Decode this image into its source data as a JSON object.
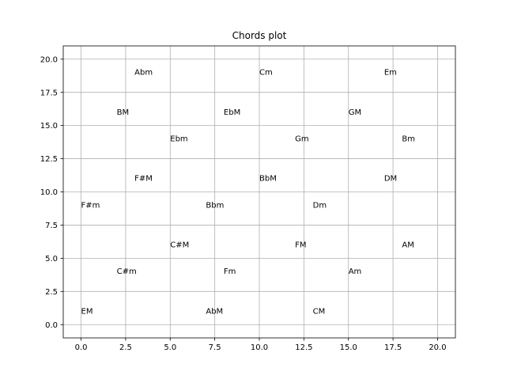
{
  "chart_data": {
    "type": "scatter",
    "title": "Chords plot",
    "xlabel": "",
    "ylabel": "",
    "xlim": [
      -1,
      21
    ],
    "ylim": [
      -1,
      21
    ],
    "grid": true,
    "x_ticks": [
      0.0,
      2.5,
      5.0,
      7.5,
      10.0,
      12.5,
      15.0,
      17.5,
      20.0
    ],
    "y_ticks": [
      0.0,
      2.5,
      5.0,
      7.5,
      10.0,
      12.5,
      15.0,
      17.5,
      20.0
    ],
    "x_tick_labels": [
      "0.0",
      "2.5",
      "5.0",
      "7.5",
      "10.0",
      "12.5",
      "15.0",
      "17.5",
      "20.0"
    ],
    "y_tick_labels": [
      "0.0",
      "2.5",
      "5.0",
      "7.5",
      "10.0",
      "12.5",
      "15.0",
      "17.5",
      "20.0"
    ],
    "points": [
      {
        "label": "Abm",
        "x": 3,
        "y": 19
      },
      {
        "label": "Cm",
        "x": 10,
        "y": 19
      },
      {
        "label": "Em",
        "x": 17,
        "y": 19
      },
      {
        "label": "BM",
        "x": 2,
        "y": 16
      },
      {
        "label": "EbM",
        "x": 8,
        "y": 16
      },
      {
        "label": "GM",
        "x": 15,
        "y": 16
      },
      {
        "label": "Ebm",
        "x": 5,
        "y": 14
      },
      {
        "label": "Gm",
        "x": 12,
        "y": 14
      },
      {
        "label": "Bm",
        "x": 18,
        "y": 14
      },
      {
        "label": "F#M",
        "x": 3,
        "y": 11
      },
      {
        "label": "BbM",
        "x": 10,
        "y": 11
      },
      {
        "label": "DM",
        "x": 17,
        "y": 11
      },
      {
        "label": "F#m",
        "x": 0,
        "y": 9
      },
      {
        "label": "Bbm",
        "x": 7,
        "y": 9
      },
      {
        "label": "Dm",
        "x": 13,
        "y": 9
      },
      {
        "label": "C#M",
        "x": 5,
        "y": 6
      },
      {
        "label": "FM",
        "x": 12,
        "y": 6
      },
      {
        "label": "AM",
        "x": 18,
        "y": 6
      },
      {
        "label": "C#m",
        "x": 2,
        "y": 4
      },
      {
        "label": "Fm",
        "x": 8,
        "y": 4
      },
      {
        "label": "Am",
        "x": 15,
        "y": 4
      },
      {
        "label": "EM",
        "x": 0,
        "y": 1
      },
      {
        "label": "AbM",
        "x": 7,
        "y": 1
      },
      {
        "label": "CM",
        "x": 13,
        "y": 1
      }
    ]
  }
}
